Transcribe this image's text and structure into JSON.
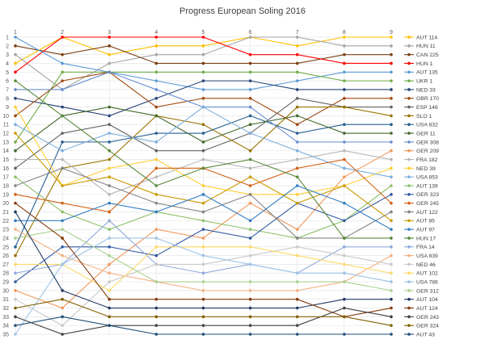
{
  "chart_data": {
    "type": "line",
    "title": "Progress European Soling 2016",
    "x": [
      "1",
      "2",
      "3",
      "4",
      "5",
      "6",
      "7",
      "8",
      "9"
    ],
    "y_ticks": [
      "1",
      "2",
      "3",
      "4",
      "5",
      "6",
      "7",
      "8",
      "9",
      "10",
      "11",
      "12",
      "13",
      "14",
      "15",
      "16",
      "17",
      "18",
      "19",
      "20",
      "21",
      "22",
      "23",
      "24",
      "25",
      "26",
      "27",
      "28",
      "29",
      "30",
      "31",
      "32",
      "33",
      "34",
      "35"
    ],
    "ylim": [
      1,
      35
    ],
    "y_inverted": true,
    "grid": true,
    "legend": "right",
    "series": [
      {
        "name": "AUT 114",
        "color": "#ffc000",
        "values": [
          4,
          1,
          3,
          2,
          2,
          1,
          2,
          1,
          1
        ]
      },
      {
        "name": "HUN 11",
        "color": "#a5a5a5",
        "values": [
          3,
          7,
          4,
          3,
          3,
          1,
          1,
          2,
          2
        ]
      },
      {
        "name": "CAN 225",
        "color": "#7b3f12",
        "values": [
          2,
          3,
          2,
          4,
          4,
          4,
          4,
          3,
          3
        ]
      },
      {
        "name": "HUN 1",
        "color": "#ff0000",
        "values": [
          5,
          1,
          1,
          1,
          1,
          3,
          3,
          4,
          4
        ]
      },
      {
        "name": "AUT 135",
        "color": "#5b9bd5",
        "values": [
          1,
          4,
          5,
          6,
          7,
          7,
          6,
          5,
          5
        ]
      },
      {
        "name": "UKR 1",
        "color": "#70ad47",
        "values": [
          13,
          5,
          5,
          5,
          5,
          5,
          5,
          6,
          6
        ]
      },
      {
        "name": "NED 33",
        "color": "#264478",
        "values": [
          8,
          9,
          10,
          8,
          6,
          6,
          7,
          7,
          7
        ]
      },
      {
        "name": "GBR 170",
        "color": "#9e480e",
        "values": [
          10,
          6,
          5,
          9,
          8,
          8,
          11,
          8,
          8
        ]
      },
      {
        "name": "ESP 146",
        "color": "#636363",
        "values": [
          16,
          12,
          11,
          14,
          14,
          12,
          8,
          9,
          9
        ]
      },
      {
        "name": "SLO 1",
        "color": "#997300",
        "values": [
          26,
          16,
          15,
          10,
          11,
          14,
          9,
          9,
          10
        ]
      },
      {
        "name": "USA 832",
        "color": "#255e91",
        "values": [
          25,
          13,
          13,
          12,
          12,
          10,
          12,
          11,
          11
        ]
      },
      {
        "name": "GER 11",
        "color": "#43682b",
        "values": [
          14,
          10,
          9,
          10,
          13,
          11,
          10,
          12,
          12
        ]
      },
      {
        "name": "GER 308",
        "color": "#698ed0",
        "values": [
          7,
          7,
          5,
          7,
          9,
          9,
          13,
          13,
          13
        ]
      },
      {
        "name": "GER 209",
        "color": "#f1975a",
        "values": [
          30,
          32,
          27,
          23,
          24,
          20,
          23,
          17,
          14
        ]
      },
      {
        "name": "FRA 182",
        "color": "#b7b7b7",
        "values": [
          15,
          15,
          19,
          17,
          15,
          16,
          15,
          14,
          15
        ]
      },
      {
        "name": "NED 39",
        "color": "#ffcd33",
        "values": [
          9,
          18,
          16,
          15,
          18,
          19,
          19,
          18,
          16
        ]
      },
      {
        "name": "USA 853",
        "color": "#7cafdd",
        "values": [
          11,
          14,
          12,
          13,
          9,
          12,
          14,
          16,
          17
        ]
      },
      {
        "name": "AUT 139",
        "color": "#8cc168",
        "values": [
          17,
          21,
          23,
          21,
          22,
          23,
          24,
          22,
          18
        ]
      },
      {
        "name": "GER 323",
        "color": "#335aa1",
        "values": [
          29,
          25,
          25,
          26,
          23,
          24,
          20,
          22,
          19
        ]
      },
      {
        "name": "GER 245",
        "color": "#d26012",
        "values": [
          19,
          20,
          21,
          16,
          16,
          18,
          16,
          15,
          20
        ]
      },
      {
        "name": "AUT 122",
        "color": "#848484",
        "values": [
          18,
          16,
          18,
          20,
          21,
          19,
          24,
          24,
          21
        ]
      },
      {
        "name": "AUT 85",
        "color": "#cc9a00",
        "values": [
          12,
          18,
          17,
          19,
          20,
          17,
          20,
          18,
          22
        ]
      },
      {
        "name": "AUT 97",
        "color": "#327dc2",
        "values": [
          22,
          22,
          20,
          21,
          19,
          22,
          18,
          20,
          23
        ]
      },
      {
        "name": "HUN 17",
        "color": "#5a8a39",
        "values": [
          6,
          10,
          14,
          18,
          16,
          15,
          17,
          24,
          24
        ]
      },
      {
        "name": "FRA 14",
        "color": "#8faadc",
        "values": [
          28,
          27,
          22,
          27,
          28,
          27,
          28,
          25,
          25
        ]
      },
      {
        "name": "USA 839",
        "color": "#f4b183",
        "values": [
          23,
          26,
          28,
          29,
          30,
          30,
          30,
          29,
          26
        ]
      },
      {
        "name": "NED 46",
        "color": "#c9c9c9",
        "values": [
          31,
          34,
          29,
          27,
          27,
          26,
          25,
          26,
          27
        ]
      },
      {
        "name": "AUT 102",
        "color": "#ffd966",
        "values": [
          27,
          27,
          30,
          25,
          25,
          25,
          26,
          27,
          28
        ]
      },
      {
        "name": "USA 786",
        "color": "#9dc3e6",
        "values": [
          35,
          27,
          24,
          24,
          26,
          27,
          28,
          28,
          29
        ]
      },
      {
        "name": "GER 312",
        "color": "#a9d18e",
        "values": [
          24,
          23,
          26,
          29,
          29,
          29,
          29,
          29,
          30
        ]
      },
      {
        "name": "AUT 104",
        "color": "#203864",
        "values": [
          21,
          30,
          32,
          32,
          32,
          32,
          32,
          31,
          31
        ]
      },
      {
        "name": "AUT 124",
        "color": "#843c0c",
        "values": [
          20,
          24,
          31,
          31,
          31,
          31,
          31,
          33,
          32
        ]
      },
      {
        "name": "GER 243",
        "color": "#404040",
        "values": [
          33,
          35,
          34,
          34,
          34,
          34,
          34,
          32,
          33
        ]
      },
      {
        "name": "GER 324",
        "color": "#7f6000",
        "values": [
          32,
          31,
          33,
          33,
          33,
          33,
          33,
          33,
          34
        ]
      },
      {
        "name": "AUT 43",
        "color": "#1f4e79",
        "values": [
          34,
          33,
          34,
          35,
          35,
          35,
          35,
          35,
          35
        ]
      }
    ]
  }
}
